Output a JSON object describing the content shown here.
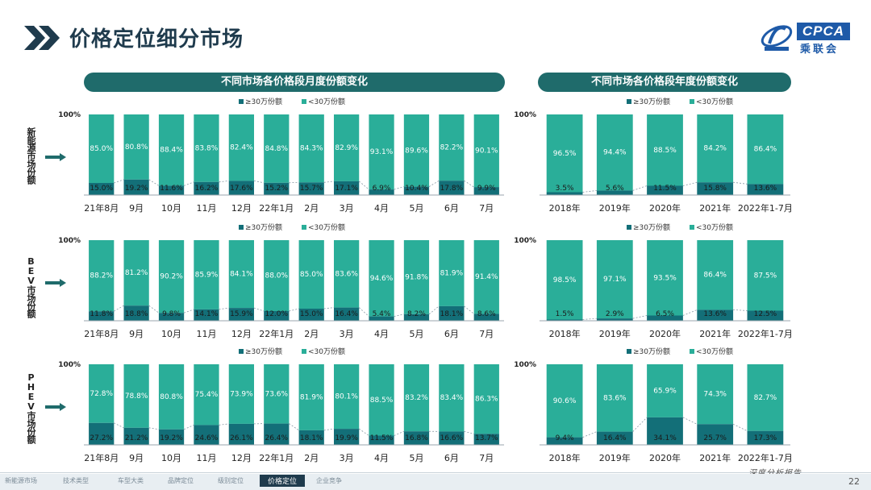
{
  "page": {
    "title": "价格定位细分市场",
    "page_number": "22",
    "footnote": "深度分析报告",
    "logo": {
      "text": "CPCA",
      "sub": "乘联会"
    }
  },
  "banners": {
    "monthly": "不同市场各价格段月度份额变化",
    "yearly": "不同市场各价格段年度份额变化"
  },
  "row_labels": [
    "新能源市场份额",
    "BEV市场份额",
    "PHEV市场份额"
  ],
  "nav": [
    "新能源市场",
    "技术类型",
    "车型大类",
    "品牌定位",
    "级别定位",
    "价格定位",
    "企业竞争"
  ],
  "nav_active_index": 5,
  "colors": {
    "high": "#136f78",
    "low": "#2aae99",
    "banner": "#1f6b6b",
    "title": "#1f3b4d"
  },
  "chart_data": [
    {
      "type": "bar",
      "stacked": true,
      "title": "新能源市场份额 - 月度",
      "ytop_label": "100%",
      "legend": [
        "≥30万份额",
        "<30万份额"
      ],
      "categories": [
        "21年8月",
        "9月",
        "10月",
        "11月",
        "12月",
        "22年1月",
        "2月",
        "3月",
        "4月",
        "5月",
        "6月",
        "7月"
      ],
      "series": [
        {
          "name": "≥30万份额",
          "values": [
            15.0,
            19.2,
            11.6,
            16.2,
            17.6,
            15.2,
            15.7,
            17.1,
            6.9,
            10.4,
            17.8,
            9.9
          ]
        },
        {
          "name": "<30万份额",
          "values": [
            85.0,
            80.8,
            88.4,
            83.8,
            82.4,
            84.8,
            84.3,
            82.9,
            93.1,
            89.6,
            82.2,
            90.1
          ]
        }
      ],
      "labels_high": [
        "15.0%",
        "19.2%",
        "11.6%",
        "16.2%",
        "17.6%",
        "15.2%",
        "15.7%",
        "17.1%",
        "6.9%",
        "10.4%",
        "17.8%",
        "9.9%"
      ],
      "labels_low": [
        "85.0%",
        "80.8%",
        "88.4%",
        "83.8%",
        "82.4%",
        "84.8%",
        "84.3%",
        "82.9%",
        "93.1%",
        "89.6%",
        "82.2%",
        "90.1%"
      ],
      "ylim": [
        0,
        100
      ]
    },
    {
      "type": "bar",
      "stacked": true,
      "title": "新能源市场份额 - 年度",
      "ytop_label": "100%",
      "legend": [
        "≥30万份额",
        "<30万份额"
      ],
      "categories": [
        "2018年",
        "2019年",
        "2020年",
        "2021年",
        "2022年1-7月"
      ],
      "series": [
        {
          "name": "≥30万份额",
          "values": [
            3.5,
            5.6,
            11.5,
            15.8,
            13.6
          ]
        },
        {
          "name": "<30万份额",
          "values": [
            96.5,
            94.4,
            88.5,
            84.2,
            86.4
          ]
        }
      ],
      "labels_high": [
        "3.5%",
        "5.6%",
        "11.5%",
        "15.8%",
        "13.6%"
      ],
      "labels_low": [
        "96.5%",
        "94.4%",
        "88.5%",
        "84.2%",
        "86.4%"
      ],
      "ylim": [
        0,
        100
      ]
    },
    {
      "type": "bar",
      "stacked": true,
      "title": "BEV市场份额 - 月度",
      "ytop_label": "100%",
      "legend": [
        "≥30万份额",
        "<30万份额"
      ],
      "categories": [
        "21年8月",
        "9月",
        "10月",
        "11月",
        "12月",
        "22年1月",
        "2月",
        "3月",
        "4月",
        "5月",
        "6月",
        "7月"
      ],
      "series": [
        {
          "name": "≥30万份额",
          "values": [
            11.8,
            18.8,
            9.8,
            14.1,
            15.9,
            12.0,
            15.0,
            16.4,
            5.4,
            8.2,
            18.1,
            8.6
          ]
        },
        {
          "name": "<30万份额",
          "values": [
            88.2,
            81.2,
            90.2,
            85.9,
            84.1,
            88.0,
            85.0,
            83.6,
            94.6,
            91.8,
            81.9,
            91.4
          ]
        }
      ],
      "labels_high": [
        "11.8%",
        "18.8%",
        "9.8%",
        "14.1%",
        "15.9%",
        "12.0%",
        "15.0%",
        "16.4%",
        "5.4%",
        "8.2%",
        "18.1%",
        "8.6%"
      ],
      "labels_low": [
        "88.2%",
        "81.2%",
        "90.2%",
        "85.9%",
        "84.1%",
        "88.0%",
        "85.0%",
        "83.6%",
        "94.6%",
        "91.8%",
        "81.9%",
        "91.4%"
      ],
      "ylim": [
        0,
        100
      ]
    },
    {
      "type": "bar",
      "stacked": true,
      "title": "BEV市场份额 - 年度",
      "ytop_label": "100%",
      "legend": [
        "≥30万份额",
        "<30万份额"
      ],
      "categories": [
        "2018年",
        "2019年",
        "2020年",
        "2021年",
        "2022年1-7月"
      ],
      "series": [
        {
          "name": "≥30万份额",
          "values": [
            1.5,
            2.9,
            6.5,
            13.6,
            12.5
          ]
        },
        {
          "name": "<30万份额",
          "values": [
            98.5,
            97.1,
            93.5,
            86.4,
            87.5
          ]
        }
      ],
      "labels_high": [
        "1.5%",
        "2.9%",
        "6.5%",
        "13.6%",
        "12.5%"
      ],
      "labels_low": [
        "98.5%",
        "97.1%",
        "93.5%",
        "86.4%",
        "87.5%"
      ],
      "ylim": [
        0,
        100
      ]
    },
    {
      "type": "bar",
      "stacked": true,
      "title": "PHEV市场份额 - 月度",
      "ytop_label": "100%",
      "legend": [
        "≥30万份额",
        "<30万份额"
      ],
      "categories": [
        "21年8月",
        "9月",
        "10月",
        "11月",
        "12月",
        "22年1月",
        "2月",
        "3月",
        "4月",
        "5月",
        "6月",
        "7月"
      ],
      "series": [
        {
          "name": "≥30万份额",
          "values": [
            27.2,
            21.2,
            19.2,
            24.6,
            26.1,
            26.4,
            18.1,
            19.9,
            11.5,
            16.8,
            16.6,
            13.7
          ]
        },
        {
          "name": "<30万份额",
          "values": [
            72.8,
            78.8,
            80.8,
            75.4,
            73.9,
            73.6,
            81.9,
            80.1,
            88.5,
            83.2,
            83.4,
            86.3
          ]
        }
      ],
      "labels_high": [
        "27.2%",
        "21.2%",
        "19.2%",
        "24.6%",
        "26.1%",
        "26.4%",
        "18.1%",
        "19.9%",
        "11.5%",
        "16.8%",
        "16.6%",
        "13.7%"
      ],
      "labels_low": [
        "72.8%",
        "78.8%",
        "80.8%",
        "75.4%",
        "73.9%",
        "73.6%",
        "81.9%",
        "80.1%",
        "88.5%",
        "83.2%",
        "83.4%",
        "86.3%"
      ],
      "ylim": [
        0,
        100
      ]
    },
    {
      "type": "bar",
      "stacked": true,
      "title": "PHEV市场份额 - 年度",
      "ytop_label": "100%",
      "legend": [
        "≥30万份额",
        "<30万份额"
      ],
      "categories": [
        "2018年",
        "2019年",
        "2020年",
        "2021年",
        "2022年1-7月"
      ],
      "series": [
        {
          "name": "≥30万份额",
          "values": [
            9.4,
            16.4,
            34.1,
            25.7,
            17.3
          ]
        },
        {
          "name": "<30万份额",
          "values": [
            90.6,
            83.6,
            65.9,
            74.3,
            82.7
          ]
        }
      ],
      "labels_high": [
        "9.4%",
        "16.4%",
        "34.1%",
        "25.7%",
        "17.3%"
      ],
      "labels_low": [
        "90.6%",
        "83.6%",
        "65.9%",
        "74.3%",
        "82.7%"
      ],
      "ylim": [
        0,
        100
      ]
    }
  ]
}
